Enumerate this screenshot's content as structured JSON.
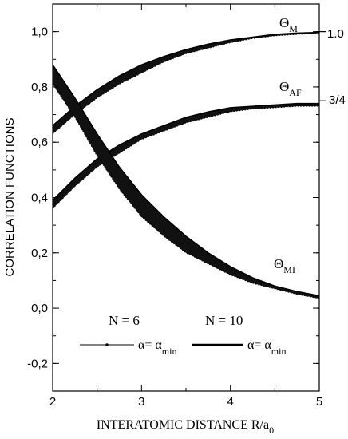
{
  "chart_data": {
    "type": "line",
    "xlabel": "INTERATOMIC DISTANCE  R/a",
    "xlabel_sub": "0",
    "ylabel": "CORRELATION FUNCTIONS",
    "xlim": [
      2,
      5
    ],
    "ylim": [
      -0.3,
      1.1
    ],
    "x_ticks": [
      2,
      3,
      4,
      5
    ],
    "x_tick_labels": [
      "2",
      "3",
      "4",
      "5"
    ],
    "y_ticks": [
      -0.2,
      0.0,
      0.2,
      0.4,
      0.6,
      0.8,
      1.0
    ],
    "y_tick_labels": [
      "-0,2",
      "0,0",
      "0,2",
      "0,4",
      "0,6",
      "0,8",
      "1,0"
    ],
    "right_ticks": [
      1.0,
      0.75
    ],
    "right_tick_labels": [
      "1.0",
      "3/4"
    ],
    "x": [
      2.0,
      2.25,
      2.5,
      2.75,
      3.0,
      3.25,
      3.5,
      3.75,
      4.0,
      4.25,
      4.5,
      4.75,
      5.0
    ],
    "bands": [
      {
        "symbol": "Θ",
        "subscript": "M",
        "lower": [
          0.63,
          0.7,
          0.76,
          0.81,
          0.85,
          0.89,
          0.92,
          0.94,
          0.96,
          0.975,
          0.985,
          0.99,
          0.995
        ],
        "upper": [
          0.66,
          0.73,
          0.79,
          0.84,
          0.88,
          0.91,
          0.935,
          0.955,
          0.97,
          0.98,
          0.99,
          0.995,
          0.997
        ]
      },
      {
        "symbol": "Θ",
        "subscript": "AF",
        "lower": [
          0.36,
          0.44,
          0.51,
          0.56,
          0.61,
          0.64,
          0.67,
          0.69,
          0.71,
          0.72,
          0.725,
          0.73,
          0.73
        ],
        "upper": [
          0.39,
          0.47,
          0.54,
          0.59,
          0.63,
          0.66,
          0.69,
          0.71,
          0.725,
          0.73,
          0.735,
          0.74,
          0.74
        ]
      },
      {
        "symbol": "Θ",
        "subscript": "MI",
        "lower": [
          0.81,
          0.69,
          0.55,
          0.43,
          0.33,
          0.26,
          0.2,
          0.16,
          0.12,
          0.09,
          0.07,
          0.05,
          0.035
        ],
        "upper": [
          0.88,
          0.76,
          0.63,
          0.51,
          0.41,
          0.33,
          0.26,
          0.2,
          0.15,
          0.11,
          0.08,
          0.06,
          0.045
        ]
      }
    ],
    "legend": {
      "n6_label": "N = 6",
      "n10_label": "N = 10",
      "alpha": "α= α",
      "alpha_sub": "min"
    }
  }
}
